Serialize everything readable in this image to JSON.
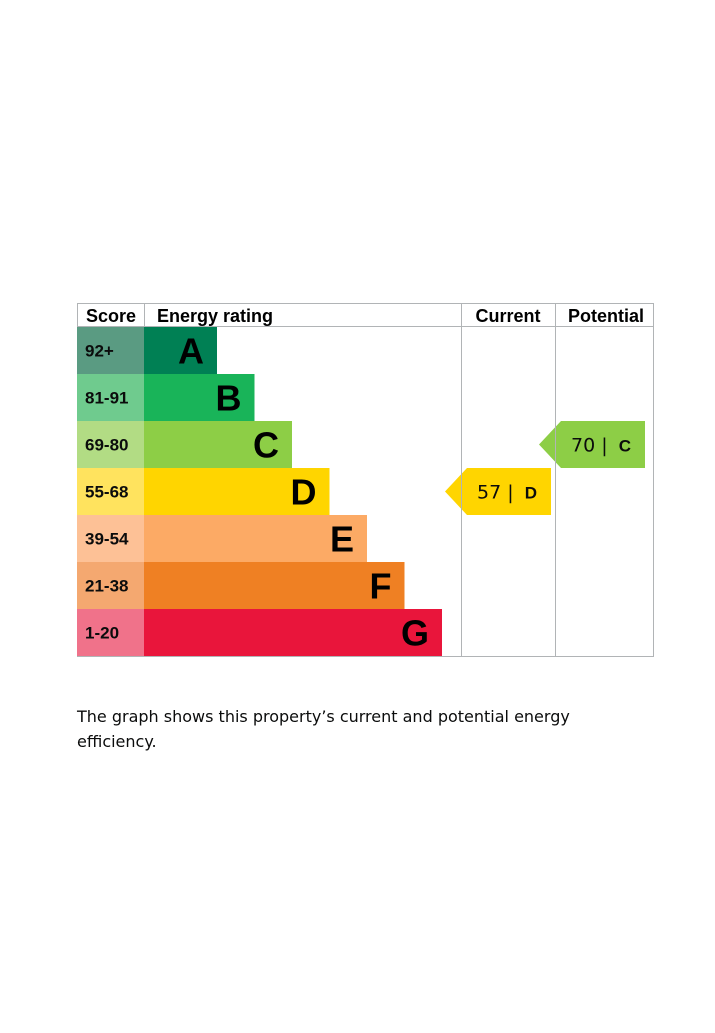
{
  "chart_data": {
    "type": "bar",
    "headers": {
      "score": "Score",
      "energy_rating": "Energy rating",
      "current": "Current",
      "potential": "Potential"
    },
    "bands": [
      {
        "letter": "A",
        "score": "92+",
        "color": "#008054",
        "score_bg": "#5a9b82"
      },
      {
        "letter": "B",
        "score": "81-91",
        "color": "#19b459",
        "score_bg": "#6fcb8e"
      },
      {
        "letter": "C",
        "score": "69-80",
        "color": "#8dce46",
        "score_bg": "#b2dc84"
      },
      {
        "letter": "D",
        "score": "55-68",
        "color": "#ffd500",
        "score_bg": "#ffe35e"
      },
      {
        "letter": "E",
        "score": "39-54",
        "color": "#fcaa65",
        "score_bg": "#fdc196"
      },
      {
        "letter": "F",
        "score": "21-38",
        "color": "#ef8023",
        "score_bg": "#f4a870"
      },
      {
        "letter": "G",
        "score": "1-20",
        "color": "#e9153b",
        "score_bg": "#f0728a"
      }
    ],
    "current": {
      "value": 57,
      "band": "D",
      "color": "#ffd500",
      "label": "57 |",
      "letter_label": "D"
    },
    "potential": {
      "value": 70,
      "band": "C",
      "color": "#8dce46",
      "label": "70 |",
      "letter_label": "C"
    }
  },
  "caption": "The graph shows this property’s current and potential energy efficiency."
}
